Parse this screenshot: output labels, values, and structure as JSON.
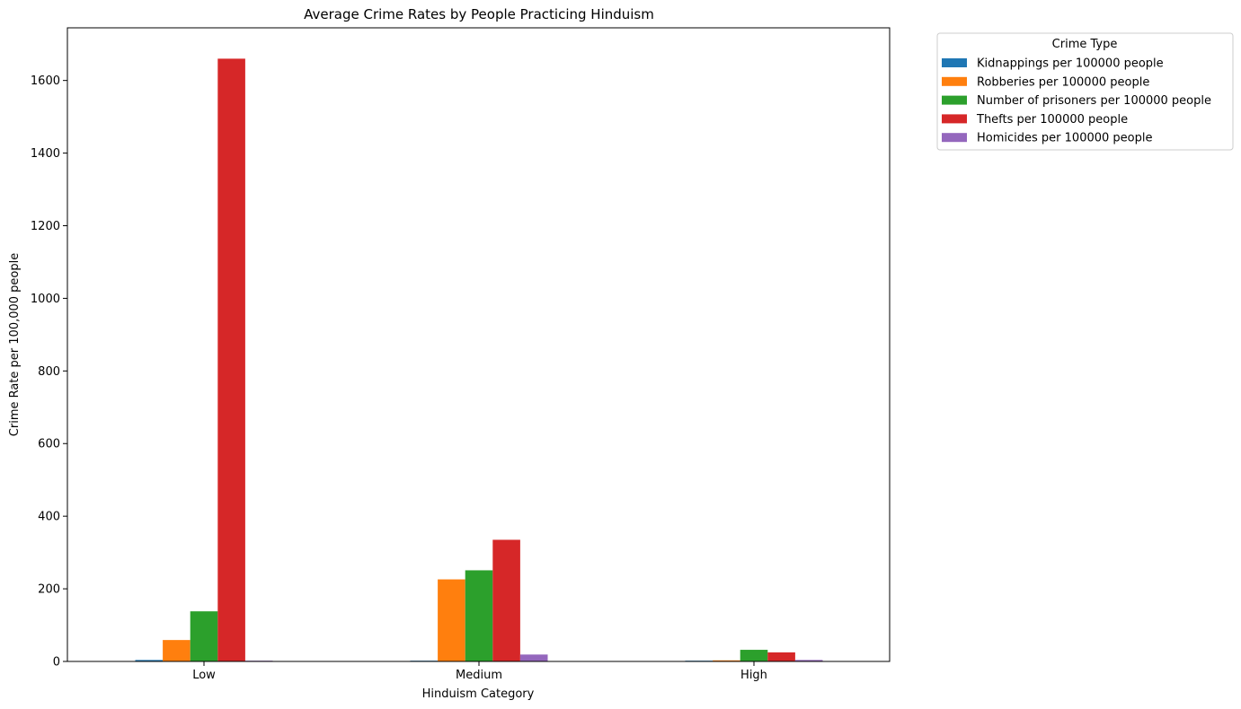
{
  "chart_data": {
    "type": "bar",
    "title": "Average Crime Rates by People Practicing Hinduism",
    "xlabel": "Hinduism Category",
    "ylabel": "Crime Rate per 100,000 people",
    "categories": [
      "Low",
      "Medium",
      "High"
    ],
    "ylim": [
      0,
      1745
    ],
    "yticks": [
      0,
      200,
      400,
      600,
      800,
      1000,
      1200,
      1400,
      1600
    ],
    "grid": false,
    "legend": {
      "title": "Crime Type",
      "placement": "outside top-right"
    },
    "series": [
      {
        "name": "Kidnappings per 100000 people",
        "color": "#1f77b4",
        "values": [
          4,
          2,
          2
        ]
      },
      {
        "name": "Robberies per 100000 people",
        "color": "#ff7f0e",
        "values": [
          59,
          226,
          3
        ]
      },
      {
        "name": "Number of prisoners per 100000 people",
        "color": "#2ca02c",
        "values": [
          138,
          251,
          32
        ]
      },
      {
        "name": "Thefts per 100000 people",
        "color": "#d62728",
        "values": [
          1660,
          335,
          25
        ]
      },
      {
        "name": "Homicides per 100000 people",
        "color": "#9467bd",
        "values": [
          2,
          19,
          4
        ]
      }
    ]
  }
}
